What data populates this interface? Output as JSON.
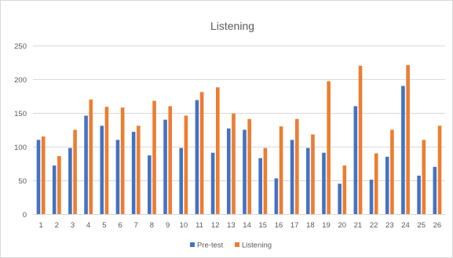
{
  "chart_data": {
    "type": "bar",
    "title": "Listening",
    "xlabel": "",
    "ylabel": "",
    "ylim": [
      0,
      250
    ],
    "yticks": [
      0,
      50,
      100,
      150,
      200,
      250
    ],
    "grid": true,
    "legend_position": "bottom",
    "categories": [
      "1",
      "2",
      "3",
      "4",
      "5",
      "6",
      "7",
      "8",
      "9",
      "10",
      "11",
      "12",
      "13",
      "14",
      "15",
      "16",
      "17",
      "18",
      "19",
      "20",
      "21",
      "22",
      "23",
      "24",
      "25",
      "26"
    ],
    "series": [
      {
        "name": "Pre-test",
        "color": "#4472c4",
        "values": [
          110,
          72,
          98,
          146,
          131,
          110,
          122,
          87,
          140,
          98,
          169,
          91,
          127,
          125,
          83,
          53,
          110,
          98,
          91,
          45,
          160,
          51,
          85,
          190,
          57,
          70
        ]
      },
      {
        "name": "Listening",
        "color": "#ed7d31",
        "values": [
          115,
          86,
          125,
          170,
          159,
          158,
          131,
          168,
          160,
          146,
          181,
          188,
          149,
          141,
          98,
          130,
          141,
          118,
          197,
          72,
          220,
          90,
          125,
          221,
          110,
          131
        ]
      }
    ]
  }
}
